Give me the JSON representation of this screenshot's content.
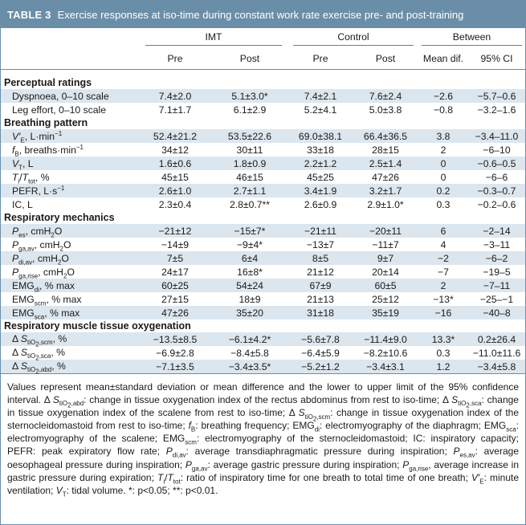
{
  "title": {
    "label": "TABLE 3",
    "text": "Exercise responses at iso-time during constant work rate exercise pre- and post-training"
  },
  "groups": {
    "imt": "IMT",
    "control": "Control",
    "between": "Between"
  },
  "subheaders": {
    "imt_pre": "Pre",
    "imt_post": "Post",
    "control_pre": "Pre",
    "control_post": "Post",
    "mean_dif": "Mean dif.",
    "ci": "95% CI"
  },
  "sections": {
    "perceptual": "Perceptual ratings",
    "breathing": "Breathing pattern",
    "mechanics": "Respiratory mechanics",
    "oxygenation": "Respiratory muscle tissue oxygenation"
  },
  "rows": {
    "dyspnoea": {
      "label": "Dyspnoea, 0–10 scale",
      "imt_pre": "7.4±2.0",
      "imt_post": "5.1±3.0*",
      "ctl_pre": "7.4±2.1",
      "ctl_post": "7.6±2.4",
      "dif": "−2.6",
      "ci": "−5.7–0.6"
    },
    "leg": {
      "label": "Leg effort, 0–10 scale",
      "imt_pre": "7.1±1.7",
      "imt_post": "6.1±2.9",
      "ctl_pre": "5.2±4.1",
      "ctl_post": "5.0±3.8",
      "dif": "−0.8",
      "ci": "−3.2–1.6"
    },
    "ve": {
      "imt_pre": "52.4±21.2",
      "imt_post": "53.5±22.6",
      "ctl_pre": "69.0±38.1",
      "ctl_post": "66.4±36.5",
      "dif": "3.8",
      "ci": "−3.4–11.0"
    },
    "fb": {
      "imt_pre": "34±12",
      "imt_post": "30±11",
      "ctl_pre": "33±18",
      "ctl_post": "28±15",
      "dif": "2",
      "ci": "−6–10"
    },
    "vt": {
      "imt_pre": "1.6±0.6",
      "imt_post": "1.8±0.9",
      "ctl_pre": "2.2±1.2",
      "ctl_post": "2.5±1.4",
      "dif": "0",
      "ci": "−0.6–0.5"
    },
    "titot": {
      "imt_pre": "45±15",
      "imt_post": "46±15",
      "ctl_pre": "45±25",
      "ctl_post": "47±26",
      "dif": "0",
      "ci": "−6–6"
    },
    "pefr": {
      "imt_pre": "2.6±1.0",
      "imt_post": "2.7±1.1",
      "ctl_pre": "3.4±1.9",
      "ctl_post": "3.2±1.7",
      "dif": "0.2",
      "ci": "−0.3–0.7"
    },
    "ic": {
      "label": "IC, L",
      "imt_pre": "2.3±0.4",
      "imt_post": "2.8±0.7**",
      "ctl_pre": "2.6±0.9",
      "ctl_post": "2.9±1.0*",
      "dif": "0.3",
      "ci": "−0.2–0.6"
    },
    "pes": {
      "imt_pre": "−21±12",
      "imt_post": "−15±7*",
      "ctl_pre": "−21±11",
      "ctl_post": "−20±11",
      "dif": "6",
      "ci": "−2–14"
    },
    "pgaav": {
      "imt_pre": "−14±9",
      "imt_post": "−9±4*",
      "ctl_pre": "−13±7",
      "ctl_post": "−11±7",
      "dif": "4",
      "ci": "−3–11"
    },
    "pdiav": {
      "imt_pre": "7±5",
      "imt_post": "6±4",
      "ctl_pre": "8±5",
      "ctl_post": "9±7",
      "dif": "−2",
      "ci": "−6–2"
    },
    "pgarise": {
      "imt_pre": "24±17",
      "imt_post": "16±8*",
      "ctl_pre": "21±12",
      "ctl_post": "20±14",
      "dif": "−7",
      "ci": "−19–5"
    },
    "emgdi": {
      "imt_pre": "60±25",
      "imt_post": "54±24",
      "ctl_pre": "67±9",
      "ctl_post": "60±5",
      "dif": "2",
      "ci": "−7–11"
    },
    "emgscm": {
      "imt_pre": "27±15",
      "imt_post": "18±9",
      "ctl_pre": "21±13",
      "ctl_post": "25±12",
      "dif": "−13*",
      "ci": "−25–−1"
    },
    "emgsca": {
      "imt_pre": "47±26",
      "imt_post": "35±20",
      "ctl_pre": "31±18",
      "ctl_post": "35±19",
      "dif": "−16",
      "ci": "−40–8"
    },
    "sscm": {
      "imt_pre": "−13.5±8.5",
      "imt_post": "−6.1±4.2*",
      "ctl_pre": "−5.6±7.8",
      "ctl_post": "−11.4±9.0",
      "dif": "13.3*",
      "ci": "0.2±26.4"
    },
    "ssca": {
      "imt_pre": "−6.9±2.8",
      "imt_post": "−8.4±5.8",
      "ctl_pre": "−6.4±5.9",
      "ctl_post": "−8.2±10.6",
      "dif": "0.3",
      "ci": "−11.0±11.6"
    },
    "sabd": {
      "imt_pre": "−7.1±3.5",
      "imt_post": "−3.4±3.5*",
      "ctl_pre": "−5.2±1.2",
      "ctl_post": "−3.4±3.1",
      "dif": "1.2",
      "ci": "−3.4±5.8"
    }
  }
}
